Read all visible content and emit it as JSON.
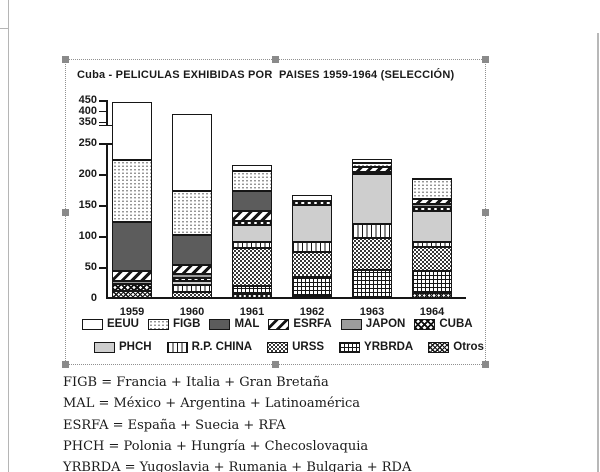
{
  "chart": {
    "title": "Cuba - PELICULAS EXHIBIDAS POR  PAISES 1959-1964 (SELECCIÓN)"
  },
  "chart_data": {
    "type": "bar",
    "stacked": true,
    "title": "Cuba - PELICULAS EXHIBIDAS POR  PAISES 1959-1964 (SELECCIÓN)",
    "categories": [
      "1959",
      "1960",
      "1961",
      "1962",
      "1963",
      "1964"
    ],
    "series": [
      {
        "name": "EEUU",
        "pattern": "empty",
        "values": [
          220,
          215,
          10,
          10,
          8,
          2
        ]
      },
      {
        "name": "FIGB",
        "pattern": "dots",
        "values": [
          100,
          70,
          32,
          0,
          5,
          32
        ]
      },
      {
        "name": "MAL",
        "pattern": "dark",
        "values": [
          80,
          48,
          33,
          0,
          0,
          0
        ]
      },
      {
        "name": "ESRFA",
        "pattern": "stripes",
        "values": [
          15,
          16,
          16,
          0,
          9,
          8
        ]
      },
      {
        "name": "JAPON",
        "pattern": "med",
        "values": [
          5,
          6,
          0,
          0,
          0,
          5
        ]
      },
      {
        "name": "CUBA",
        "pattern": "xhatch",
        "values": [
          11,
          5,
          7,
          6,
          3,
          6
        ]
      },
      {
        "name": "PHCH",
        "pattern": "light",
        "values": [
          0,
          6,
          26,
          60,
          80,
          50
        ]
      },
      {
        "name": "R.P. CHINA",
        "pattern": "vlines",
        "values": [
          0,
          11,
          10,
          16,
          24,
          8
        ]
      },
      {
        "name": "URSS",
        "pattern": "ddots",
        "values": [
          0,
          10,
          62,
          40,
          51,
          40
        ]
      },
      {
        "name": "YRBRDA",
        "pattern": "grid",
        "values": [
          0,
          0,
          12,
          30,
          45,
          35
        ]
      },
      {
        "name": "Otros",
        "pattern": "cross",
        "values": [
          12,
          0,
          7,
          4,
          0,
          8
        ]
      }
    ],
    "totals": [
      443,
      387,
      215,
      166,
      225,
      194
    ],
    "y_axis": {
      "broken": true,
      "lower_ticks": [
        0,
        50,
        100,
        150,
        200,
        250
      ],
      "upper_ticks": [
        350,
        400,
        450
      ],
      "grid": false
    },
    "legend": {
      "position": "bottom",
      "rows": [
        [
          0,
          1,
          2,
          3,
          4,
          5
        ],
        [
          6,
          7,
          8,
          9,
          10
        ]
      ]
    }
  },
  "footnotes": [
    "FIGB = Francia + Italia + Gran Bretaña",
    "MAL = México + Argentina + Latinoamérica",
    "ESRFA = España + Suecia + RFA",
    "PHCH = Polonia + Hungría + Checoslovaquia",
    "YRBRDA = Yugoslavia + Rumania + Bulgaria + RDA"
  ],
  "colors": {
    "ink": "#1a1a1a",
    "solid_dark": "#5c5c5c",
    "solid_medium": "#9c9c9c",
    "solid_light": "#cecece",
    "selection_handle": "#8a8a8a",
    "page_guide": "#b5b5b5"
  }
}
